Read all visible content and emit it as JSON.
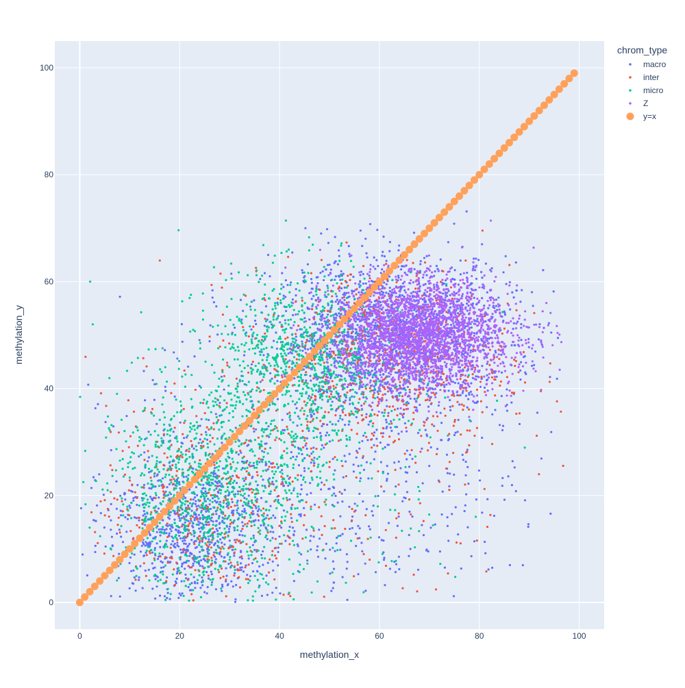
{
  "colors": {
    "plot_bg": "#E5ECF6",
    "grid": "#ffffff",
    "text": "#2a3f5f",
    "macro": "#636EFA",
    "inter": "#EF553B",
    "micro": "#00CC96",
    "Z": "#AB63FA",
    "y=x": "#FFA15A"
  },
  "chart_data": {
    "type": "scatter",
    "xlabel": "methylation_x",
    "ylabel": "methylation_y",
    "xlim": [
      -5,
      105
    ],
    "ylim": [
      -5,
      105
    ],
    "x_ticks": [
      0,
      20,
      40,
      60,
      80,
      100
    ],
    "y_ticks": [
      0,
      20,
      40,
      60,
      80,
      100
    ],
    "grid": true,
    "legend": {
      "title": "chrom_type",
      "placement": "top-right-outside",
      "entries": [
        "macro",
        "inter",
        "micro",
        "Z",
        "y=x"
      ]
    },
    "series": [
      {
        "name": "macro",
        "color": "#636EFA",
        "marker_size": "small",
        "distribution": "dense point cloud; main cluster x 40-90, y 35-65 centered near (65, 50); secondary cluster x 5-40, y 2-30; sparse outliers",
        "clusters": [
          {
            "cx": 63,
            "cy": 50,
            "sx": 12,
            "sy": 7,
            "weight": 0.55
          },
          {
            "cx": 22,
            "cy": 14,
            "sx": 8,
            "sy": 7,
            "weight": 0.25
          },
          {
            "cx": 50,
            "cy": 25,
            "sx": 20,
            "sy": 14,
            "weight": 0.2
          }
        ]
      },
      {
        "name": "inter",
        "color": "#EF553B",
        "marker_size": "small",
        "distribution": "scattered across same regions as macro with lower density",
        "clusters": [
          {
            "cx": 60,
            "cy": 45,
            "sx": 13,
            "sy": 9,
            "weight": 0.55
          },
          {
            "cx": 25,
            "cy": 18,
            "sx": 10,
            "sy": 10,
            "weight": 0.3
          },
          {
            "cx": 45,
            "cy": 25,
            "sx": 22,
            "sy": 15,
            "weight": 0.15
          }
        ]
      },
      {
        "name": "micro",
        "color": "#00CC96",
        "marker_size": "small",
        "distribution": "concentrated x 10-50, y 10-50 along diagonal; spread into main cluster",
        "clusters": [
          {
            "cx": 45,
            "cy": 45,
            "sx": 9,
            "sy": 8,
            "weight": 0.4
          },
          {
            "cx": 25,
            "cy": 20,
            "sx": 9,
            "sy": 9,
            "weight": 0.4
          },
          {
            "cx": 40,
            "cy": 30,
            "sx": 18,
            "sy": 14,
            "weight": 0.2
          }
        ]
      },
      {
        "name": "Z",
        "color": "#AB63FA",
        "marker_size": "small",
        "distribution": "dense purple core x 55-80, y 40-60, centered near (67, 50)",
        "clusters": [
          {
            "cx": 67,
            "cy": 50,
            "sx": 8,
            "sy": 5,
            "weight": 0.85
          },
          {
            "cx": 75,
            "cy": 50,
            "sx": 10,
            "sy": 6,
            "weight": 0.15
          }
        ]
      },
      {
        "name": "y=x",
        "color": "#FFA15A",
        "marker_size": "large",
        "x_range": [
          0,
          99
        ],
        "y_equals_x": true
      }
    ]
  }
}
